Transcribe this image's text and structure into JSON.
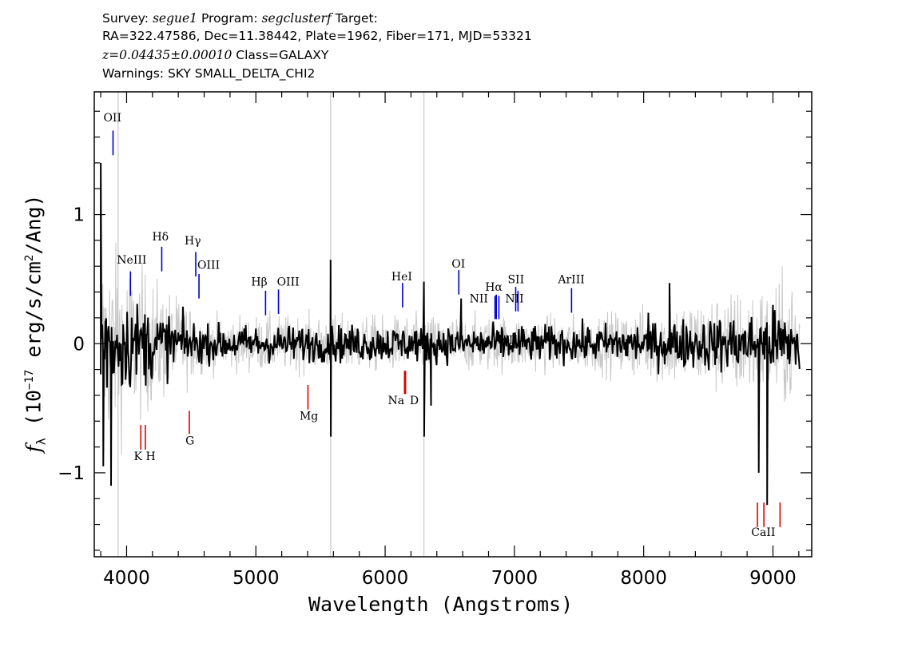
{
  "header": {
    "line1_a": "Survey: ",
    "survey": "segue1",
    "line1_b": " Program: ",
    "program": "segclusterf",
    "line1_c": " Target:",
    "line2": "RA=322.47586, Dec=11.38442, Plate=1962, Fiber=171, MJD=53321",
    "redshift": "z=0.04435±0.00010",
    "line3_b": " Class=GALAXY",
    "line4": "Warnings: SKY SMALL_DELTA_CHI2"
  },
  "chart_data": {
    "type": "line",
    "title": "",
    "xlabel": "Wavelength (Angstroms)",
    "ylabel_parts": {
      "f": "f",
      "sub": "λ",
      "pre": " (10",
      "exp": "−17",
      "mid": " erg/s/cm",
      "sq": "2",
      "post": "/Ang)"
    },
    "xlim": [
      3750,
      9300
    ],
    "ylim": [
      -1.65,
      1.95
    ],
    "x_ticks": [
      4000,
      5000,
      6000,
      7000,
      8000,
      9000
    ],
    "x_minor_step": 200,
    "y_ticks": [
      -1,
      0,
      1
    ],
    "y_tick_labels": [
      "−1",
      "0",
      "1"
    ],
    "y_minor_step": 0.2,
    "grid": false,
    "series": [
      {
        "role": "error",
        "color": "#c8c8c8",
        "x_range": [
          3800,
          9210
        ],
        "approx_level": 0.0,
        "approx_noise_blue": 0.55,
        "approx_noise_mid": 0.15,
        "approx_noise_red": 0.35
      },
      {
        "role": "flux",
        "color": "#000000",
        "x_range": [
          3800,
          9210
        ],
        "approx_level": 0.0,
        "approx_noise_blue": 0.3,
        "approx_noise_mid": 0.1,
        "approx_noise_red": 0.18
      }
    ],
    "features": [
      {
        "x": 3800,
        "y": 1.4
      },
      {
        "x": 3820,
        "y": -0.95
      },
      {
        "x": 3880,
        "y": -1.1
      },
      {
        "x": 5578,
        "y": 0.65
      },
      {
        "x": 5580,
        "y": -0.72
      },
      {
        "x": 6300,
        "y": 0.48
      },
      {
        "x": 6302,
        "y": -0.72
      },
      {
        "x": 6355,
        "y": -0.48
      },
      {
        "x": 6588,
        "y": 0.35
      },
      {
        "x": 8200,
        "y": 0.47
      },
      {
        "x": 8890,
        "y": -1.0
      },
      {
        "x": 8955,
        "y": -1.25
      },
      {
        "x": 9000,
        "y": 0.3
      }
    ],
    "sky_lines": [
      3934,
      5578,
      6300
    ],
    "emission_lines": [
      {
        "label": "OII",
        "x": 3895,
        "y_low": 1.46,
        "y_high": 1.65,
        "label_dx": -12,
        "label_y": 1.72
      },
      {
        "label": "NeIII",
        "x": 4030,
        "y_low": 0.37,
        "y_high": 0.56,
        "label_dx": -17,
        "label_y": 0.62
      },
      {
        "label": "Hδ",
        "x": 4272,
        "y_low": 0.56,
        "y_high": 0.75,
        "label_dx": -12,
        "label_y": 0.8
      },
      {
        "label": "Hγ",
        "x": 4535,
        "y_low": 0.52,
        "y_high": 0.71,
        "label_dx": -14,
        "label_y": 0.77
      },
      {
        "label": "OIII",
        "x": 4560,
        "y_low": 0.35,
        "y_high": 0.54,
        "label_dx": -2,
        "label_y": 0.58
      },
      {
        "label": "Hβ",
        "x": 5075,
        "y_low": 0.22,
        "y_high": 0.41,
        "label_dx": -18,
        "label_y": 0.45
      },
      {
        "label": "OIII",
        "x": 5175,
        "y_low": 0.23,
        "y_high": 0.42,
        "label_dx": -2,
        "label_y": 0.45
      },
      {
        "label": "HeI",
        "x": 6135,
        "y_low": 0.28,
        "y_high": 0.47,
        "label_dx": -14,
        "label_y": 0.49
      },
      {
        "label": "OI",
        "x": 6570,
        "y_low": 0.38,
        "y_high": 0.57,
        "label_dx": -9,
        "label_y": 0.59
      },
      {
        "label": "NII",
        "x": 6850,
        "y_low": 0.19,
        "y_high": 0.37,
        "label_dx": -32,
        "label_y": 0.32
      },
      {
        "label": "Hα",
        "x": 6860,
        "y_low": 0.19,
        "y_high": 0.38,
        "label_dx": -14,
        "label_y": 0.41
      },
      {
        "label": "NII",
        "x": 6880,
        "y_low": 0.19,
        "y_high": 0.37,
        "label_dx": 0,
        "label_y": 0
      },
      {
        "label": "SII",
        "x": 7010,
        "y_low": 0.25,
        "y_high": 0.44,
        "label_dx": -10,
        "label_y": 0.47
      },
      {
        "label": "NII",
        "x": 7028,
        "y_low": 0.25,
        "y_high": 0.41,
        "label_dx": -16,
        "label_y": 0.32
      },
      {
        "label": "ArIII",
        "x": 7442,
        "y_low": 0.24,
        "y_high": 0.43,
        "label_dx": -17,
        "label_y": 0.47
      }
    ],
    "absorption_lines": [
      {
        "label": "K",
        "x": 4110,
        "y_low": -0.82,
        "y_high": -0.63
      },
      {
        "label": "H",
        "x": 4145,
        "y_low": -0.82,
        "y_high": -0.63
      },
      {
        "label": "G",
        "x": 4485,
        "y_low": -0.7,
        "y_high": -0.52
      },
      {
        "label": "Mg",
        "x": 5403,
        "y_low": -0.51,
        "y_high": -0.32
      },
      {
        "label": "Na",
        "x": 6150,
        "y_low": -0.39,
        "y_high": -0.21
      },
      {
        "label": "D",
        "x": 6158,
        "y_low": -0.39,
        "y_high": -0.21
      },
      {
        "label": "CaII",
        "x": 8880,
        "y_low": -1.42,
        "y_high": -1.23
      },
      {
        "label": "CaII",
        "x": 8930,
        "y_low": -1.42,
        "y_high": -1.23
      },
      {
        "label": "CaII",
        "x": 9055,
        "y_low": -1.42,
        "y_high": -1.23
      }
    ],
    "absorption_labels": [
      {
        "text": "K H",
        "x": 4140,
        "y": -0.9
      },
      {
        "text": "G",
        "x": 4490,
        "y": -0.78
      },
      {
        "text": "Mg",
        "x": 5410,
        "y": -0.59
      },
      {
        "text": "Na",
        "x": 6085,
        "y": -0.47
      },
      {
        "text": "D",
        "x": 6225,
        "y": -0.47
      },
      {
        "text": "CaII",
        "x": 8925,
        "y": -1.49
      }
    ],
    "colors": {
      "emission": "#0000cc",
      "absorption": "#dd0000"
    }
  }
}
